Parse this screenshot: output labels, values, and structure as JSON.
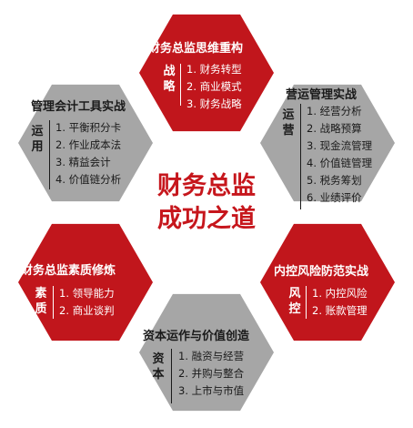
{
  "colors": {
    "red": "#c1161c",
    "gray": "#a6a6a6",
    "white": "#ffffff",
    "center_text": "#c6161c"
  },
  "center": {
    "line1": "财务总监",
    "line2": "成功之道"
  },
  "top": {
    "title": "财务总监思维重构",
    "side": [
      "战",
      "略"
    ],
    "items": [
      "1. 财务转型",
      "2. 商业模式",
      "3. 财务战略"
    ]
  },
  "upper_right": {
    "title": "营运管理实战",
    "side": [
      "运",
      "营"
    ],
    "items": [
      "1. 经营分析",
      "2. 战略预算",
      "3. 现金流管理",
      "4. 价值链管理",
      "5. 税务筹划",
      "6. 业绩评价"
    ]
  },
  "lower_right": {
    "title": "内控风险防范实战",
    "side": [
      "风",
      "控"
    ],
    "items": [
      "1. 内控风险",
      "2. 账款管理"
    ]
  },
  "bottom": {
    "title": "资本运作与价值创造",
    "side": [
      "资",
      "本"
    ],
    "items": [
      "1. 融资与经营",
      "2. 并购与整合",
      "3. 上市与市值"
    ]
  },
  "lower_left": {
    "title": "财务总监素质修炼",
    "side": [
      "素",
      "质"
    ],
    "items": [
      "1. 领导能力",
      "2. 商业谈判"
    ]
  },
  "upper_left": {
    "title": "管理会计工具实战",
    "side": [
      "运",
      "用"
    ],
    "items": [
      "1. 平衡积分卡",
      "2. 作业成本法",
      "3. 精益会计",
      "4. 价值链分析"
    ]
  }
}
